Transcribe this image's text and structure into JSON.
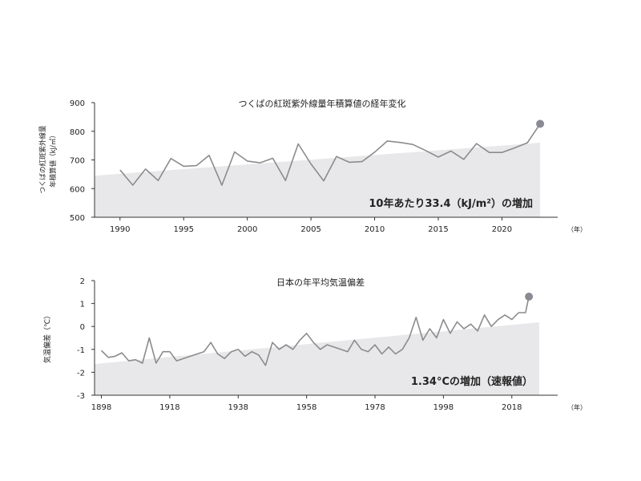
{
  "chart_data": [
    {
      "type": "line",
      "title": "つくばの紅斑紫外線量年積算値の経年変化",
      "ylabel_line1": "つくばの紅斑紫外線量",
      "ylabel_line2": "年積算値（kJ/㎡）",
      "x_unit": "（年）",
      "xlim": [
        1988,
        2024
      ],
      "ylim": [
        500,
        900
      ],
      "x_ticks": [
        "1990",
        "1995",
        "2000",
        "2005",
        "2010",
        "2015",
        "2020"
      ],
      "y_ticks": [
        "900",
        "800",
        "700",
        "600",
        "500"
      ],
      "annotation": "10年あたり33.4（kJ/m²）の増加",
      "trend": {
        "x": [
          1988,
          2023
        ],
        "y": [
          645,
          760
        ]
      },
      "series": [
        {
          "x": [
            1990,
            1991,
            1992,
            1993,
            1994,
            1995,
            1996,
            1997,
            1998,
            1999,
            2000,
            2001,
            2002,
            2003,
            2004,
            2005,
            2006,
            2007,
            2008,
            2009,
            2010,
            2011,
            2012,
            2013,
            2014,
            2015,
            2016,
            2017,
            2018,
            2019,
            2020,
            2021,
            2022,
            2023
          ],
          "values": [
            665,
            612,
            668,
            628,
            705,
            678,
            680,
            716,
            612,
            728,
            696,
            690,
            706,
            628,
            756,
            686,
            627,
            712,
            692,
            694,
            727,
            766,
            761,
            754,
            733,
            710,
            731,
            702,
            757,
            726,
            726,
            742,
            760,
            826
          ]
        }
      ],
      "final_point": {
        "x": 2023,
        "y": 826
      },
      "colors": {
        "line": "#8c8c8c",
        "band": "#e8e8ea",
        "marker": "#8a8a95"
      }
    },
    {
      "type": "line",
      "title": "日本の年平均気温偏差",
      "ylabel": "気温偏差（℃）",
      "x_unit": "（年）",
      "xlim": [
        1896,
        2030
      ],
      "ylim": [
        -3,
        2
      ],
      "x_ticks": [
        "1898",
        "1918",
        "1938",
        "1958",
        "1978",
        "1998",
        "2018"
      ],
      "y_ticks": [
        "2",
        "1",
        "0",
        "-1",
        "-2",
        "-3"
      ],
      "annotation": "1.34°Cの増加（速報値）",
      "trend": {
        "x": [
          1896,
          2026
        ],
        "y": [
          -1.64,
          0.18
        ]
      },
      "series": [
        {
          "x": [
            1898,
            1900,
            1902,
            1904,
            1906,
            1908,
            1910,
            1912,
            1914,
            1916,
            1918,
            1920,
            1922,
            1924,
            1926,
            1928,
            1930,
            1932,
            1934,
            1936,
            1938,
            1940,
            1942,
            1944,
            1946,
            1948,
            1950,
            1952,
            1954,
            1956,
            1958,
            1960,
            1962,
            1964,
            1966,
            1968,
            1970,
            1972,
            1974,
            1976,
            1978,
            1980,
            1982,
            1984,
            1986,
            1988,
            1990,
            1992,
            1994,
            1996,
            1998,
            2000,
            2002,
            2004,
            2006,
            2008,
            2010,
            2012,
            2014,
            2016,
            2018,
            2020,
            2022,
            2023
          ],
          "values": [
            -1.05,
            -1.35,
            -1.3,
            -1.15,
            -1.5,
            -1.45,
            -1.6,
            -0.5,
            -1.6,
            -1.1,
            -1.1,
            -1.5,
            -1.4,
            -1.3,
            -1.2,
            -1.1,
            -0.7,
            -1.2,
            -1.4,
            -1.1,
            -1.0,
            -1.3,
            -1.1,
            -1.25,
            -1.7,
            -0.7,
            -1.0,
            -0.8,
            -1.0,
            -0.6,
            -0.3,
            -0.7,
            -1.0,
            -0.8,
            -0.9,
            -1.0,
            -1.1,
            -0.6,
            -1.0,
            -1.1,
            -0.8,
            -1.2,
            -0.9,
            -1.2,
            -1.0,
            -0.5,
            0.4,
            -0.6,
            -0.1,
            -0.5,
            0.3,
            -0.3,
            0.2,
            -0.1,
            0.1,
            -0.2,
            0.5,
            0.0,
            0.3,
            0.5,
            0.3,
            0.6,
            0.6,
            1.3
          ]
        }
      ],
      "final_point": {
        "x": 2023,
        "y": 1.3
      },
      "colors": {
        "line": "#8c8c8c",
        "band": "#e8e8ea",
        "marker": "#8a8a95"
      }
    }
  ]
}
